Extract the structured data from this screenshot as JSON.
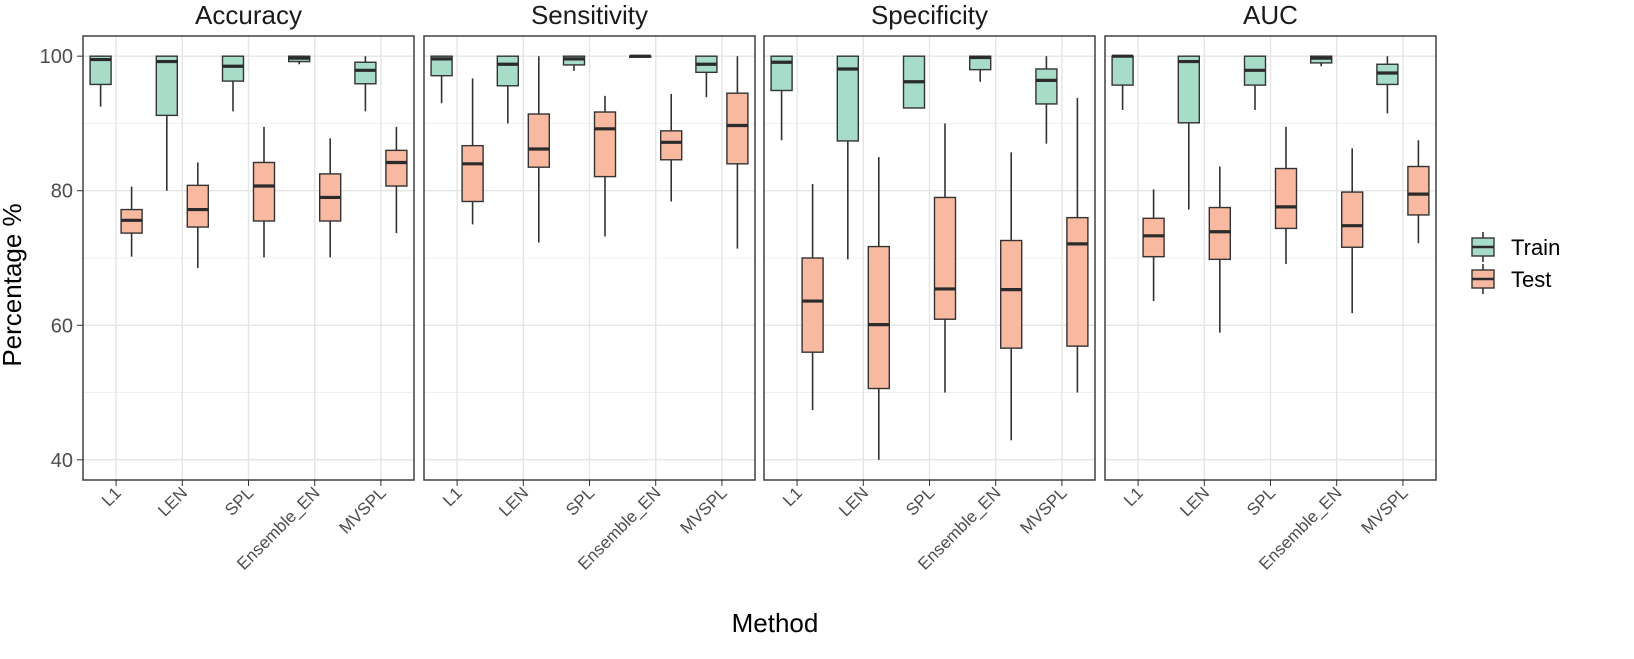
{
  "chart_data": {
    "type": "boxplot",
    "xlabel": "Method",
    "ylabel": "Percentage %",
    "ylim": [
      37,
      103
    ],
    "yticks": [
      40,
      60,
      80,
      100
    ],
    "grid": true,
    "legend_position": "right",
    "categories": [
      "L1",
      "LEN",
      "SPL",
      "Ensemble_EN",
      "MVSPL"
    ],
    "series_styles": [
      {
        "name": "Train",
        "fill": "#A6DCC8",
        "stroke": "#333333"
      },
      {
        "name": "Test",
        "fill": "#F9B9A0",
        "stroke": "#333333"
      }
    ],
    "panels": [
      {
        "title": "Accuracy",
        "train": [
          [
            92.5,
            95.8,
            99.5,
            100,
            100
          ],
          [
            80.0,
            91.2,
            99.2,
            100,
            100
          ],
          [
            91.8,
            96.3,
            98.5,
            100,
            100
          ],
          [
            98.8,
            99.2,
            99.7,
            100,
            100
          ],
          [
            91.8,
            95.9,
            97.9,
            99.1,
            100
          ]
        ],
        "test": [
          [
            70.2,
            73.7,
            75.6,
            77.2,
            80.6
          ],
          [
            68.5,
            74.6,
            77.2,
            80.8,
            84.2
          ],
          [
            70.1,
            75.5,
            80.7,
            84.2,
            89.5
          ],
          [
            70.1,
            75.5,
            79.0,
            82.5,
            87.8
          ],
          [
            73.7,
            80.7,
            84.2,
            86.0,
            89.5
          ]
        ]
      },
      {
        "title": "Sensitivity",
        "train": [
          [
            93.0,
            97.1,
            99.6,
            100,
            100
          ],
          [
            90.0,
            95.6,
            98.8,
            100,
            100
          ],
          [
            97.8,
            98.7,
            99.6,
            100,
            100
          ],
          [
            99.8,
            99.9,
            100,
            100,
            100
          ],
          [
            93.9,
            97.6,
            98.8,
            100,
            100
          ]
        ],
        "test": [
          [
            75.0,
            78.4,
            84.0,
            86.7,
            96.7
          ],
          [
            72.3,
            83.5,
            86.2,
            91.4,
            100
          ],
          [
            73.2,
            82.1,
            89.2,
            91.7,
            94.1
          ],
          [
            78.4,
            84.6,
            87.2,
            88.9,
            94.4
          ],
          [
            71.4,
            84.0,
            89.7,
            94.5,
            100
          ]
        ]
      },
      {
        "title": "Specificity",
        "train": [
          [
            87.5,
            94.9,
            99.1,
            100,
            100
          ],
          [
            69.8,
            87.4,
            98.1,
            100,
            100
          ],
          [
            92.3,
            92.3,
            96.2,
            100,
            100
          ],
          [
            96.2,
            98.0,
            99.8,
            100,
            100
          ],
          [
            87.0,
            92.9,
            96.4,
            98.1,
            100
          ]
        ],
        "test": [
          [
            47.4,
            56.0,
            63.6,
            70.0,
            81.0
          ],
          [
            40.0,
            50.6,
            60.1,
            71.7,
            85.0
          ],
          [
            50.0,
            60.9,
            65.4,
            79.0,
            90.0
          ],
          [
            42.9,
            56.6,
            65.3,
            72.6,
            85.7
          ],
          [
            50.0,
            56.9,
            72.1,
            76.0,
            93.8
          ]
        ]
      },
      {
        "title": "AUC",
        "train": [
          [
            92.0,
            95.7,
            100,
            100,
            100
          ],
          [
            77.2,
            90.1,
            99.2,
            100,
            100
          ],
          [
            92.0,
            95.7,
            97.9,
            100,
            100
          ],
          [
            98.5,
            99.0,
            99.7,
            100,
            100
          ],
          [
            91.5,
            95.8,
            97.5,
            98.8,
            100
          ]
        ],
        "test": [
          [
            63.6,
            70.2,
            73.3,
            75.9,
            80.2
          ],
          [
            58.9,
            69.8,
            73.9,
            77.5,
            83.6
          ],
          [
            69.1,
            74.4,
            77.6,
            83.3,
            89.5
          ],
          [
            61.8,
            71.6,
            74.8,
            79.8,
            86.3
          ],
          [
            72.2,
            76.4,
            79.5,
            83.6,
            87.5
          ]
        ]
      }
    ],
    "legend": [
      "Train",
      "Test"
    ]
  }
}
